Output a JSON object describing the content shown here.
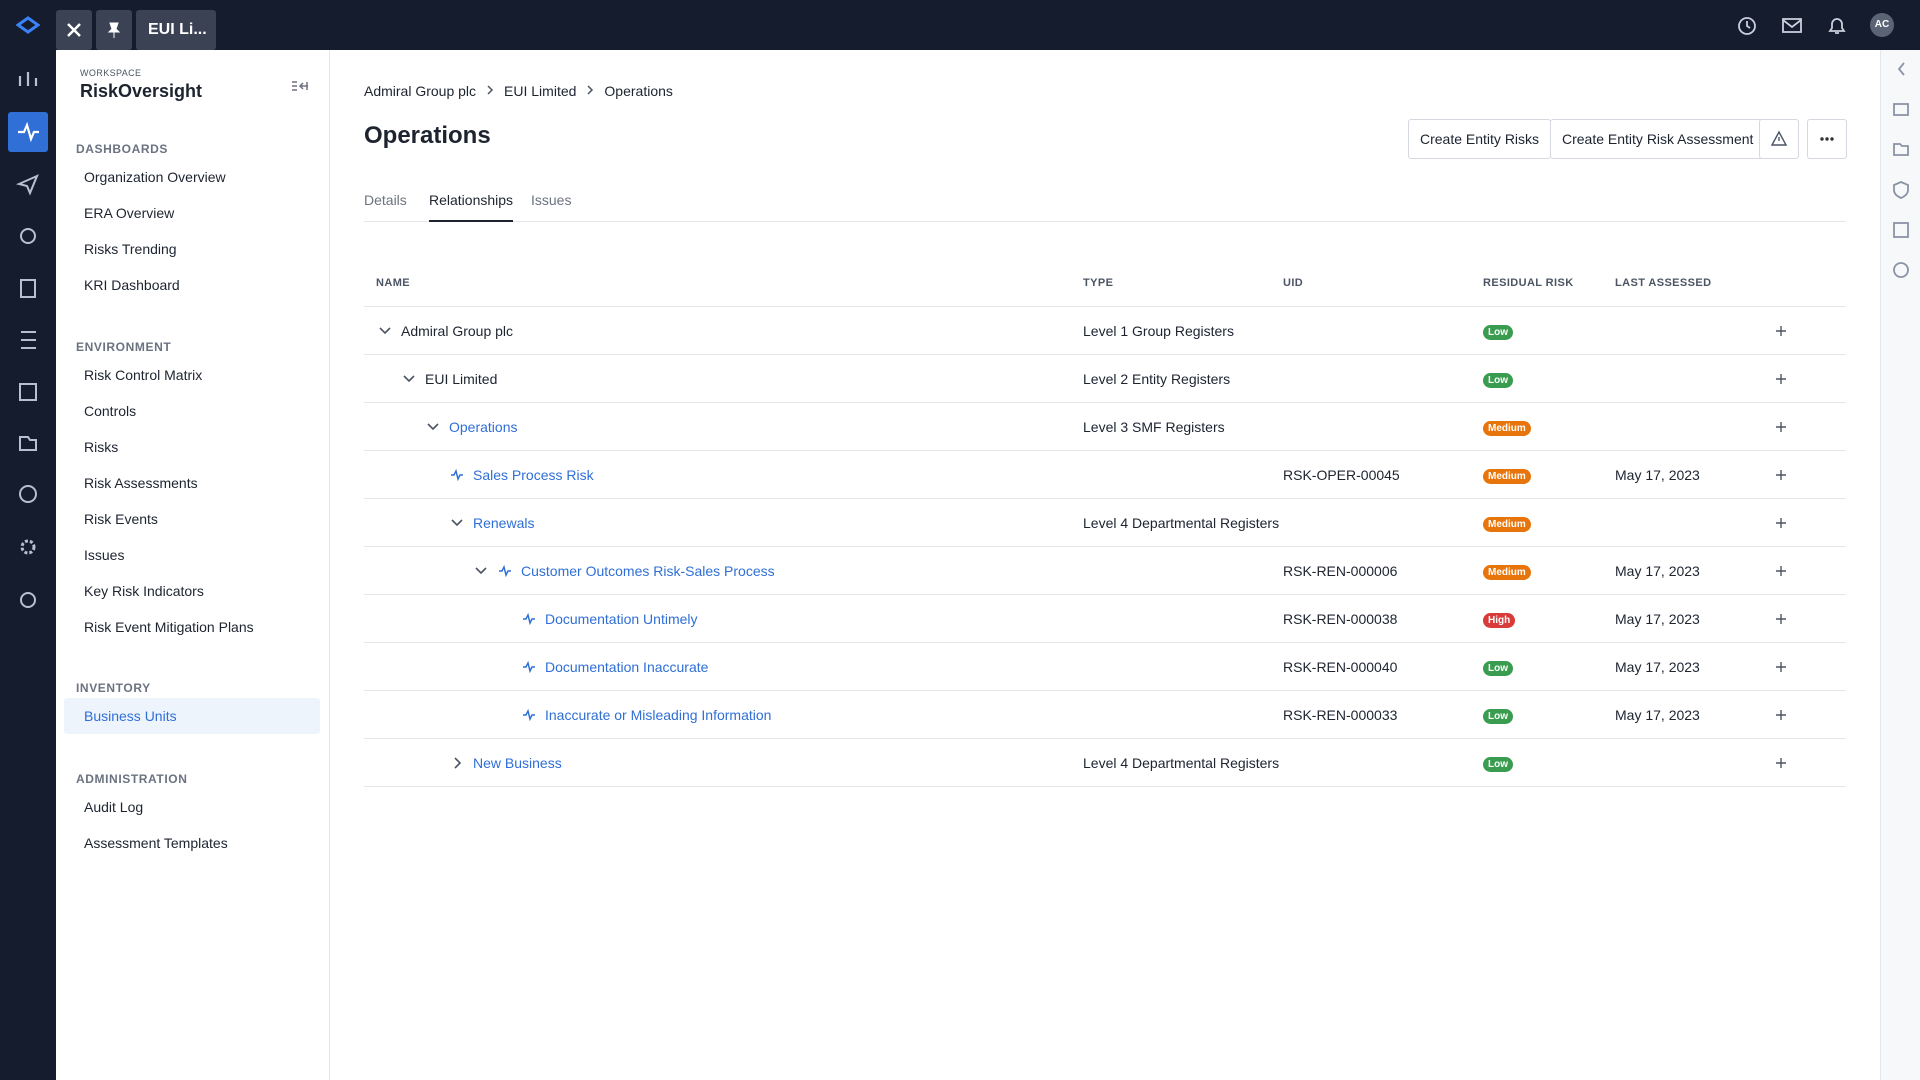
{
  "topbar": {
    "tab": "EUI Li...",
    "avatar": "AC"
  },
  "sidebar": {
    "workspace_label": "WORKSPACE",
    "workspace": "RiskOversight",
    "sections": [
      {
        "title": "DASHBOARDS",
        "items": [
          "Organization Overview",
          "ERA Overview",
          "Risks Trending",
          "KRI Dashboard"
        ]
      },
      {
        "title": "ENVIRONMENT",
        "items": [
          "Risk Control Matrix",
          "Controls",
          "Risks",
          "Risk Assessments",
          "Risk Events",
          "Issues",
          "Key Risk Indicators",
          "Risk Event Mitigation Plans"
        ]
      },
      {
        "title": "INVENTORY",
        "items": [
          "Business Units"
        ]
      },
      {
        "title": "ADMINISTRATION",
        "items": [
          "Audit Log",
          "Assessment Templates"
        ]
      }
    ]
  },
  "breadcrumb": [
    "Admiral Group plc",
    "EUI Limited",
    "Operations"
  ],
  "title": "Operations",
  "buttons": [
    "Create Entity Risks",
    "Create Entity Risk Assessment"
  ],
  "tabs": [
    "Details",
    "Relationships",
    "Issues"
  ],
  "table": {
    "headers": [
      "NAME",
      "TYPE",
      "UID",
      "RESIDUAL RISK",
      "LAST ASSESSED"
    ],
    "rows": [
      {
        "name": "Admiral Group plc",
        "type": "Level 1 Group Registers",
        "risk": "Low"
      },
      {
        "name": "EUI Limited",
        "type": "Level 2 Entity Registers",
        "risk": "Low"
      },
      {
        "name": "Operations",
        "type": "Level 3 SMF Registers",
        "risk": "Medium"
      },
      {
        "name": "Sales Process Risk",
        "uid": "RSK-OPER-00045",
        "risk": "Medium",
        "assessed": "May 17, 2023"
      },
      {
        "name": "Renewals",
        "type": "Level 4 Departmental Registers",
        "risk": "Medium"
      },
      {
        "name": "Customer Outcomes Risk-Sales Process",
        "uid": "RSK-REN-000006",
        "risk": "Medium",
        "assessed": "May 17, 2023"
      },
      {
        "name": "Documentation Untimely",
        "uid": "RSK-REN-000038",
        "risk": "High",
        "assessed": "May 17, 2023"
      },
      {
        "name": "Documentation Inaccurate",
        "uid": "RSK-REN-000040",
        "risk": "Low",
        "assessed": "May 17, 2023"
      },
      {
        "name": "Inaccurate or Misleading Information",
        "uid": "RSK-REN-000033",
        "risk": "Low",
        "assessed": "May 17, 2023"
      },
      {
        "name": "New Business",
        "type": "Level 4 Departmental Registers",
        "risk": "Low"
      }
    ]
  }
}
